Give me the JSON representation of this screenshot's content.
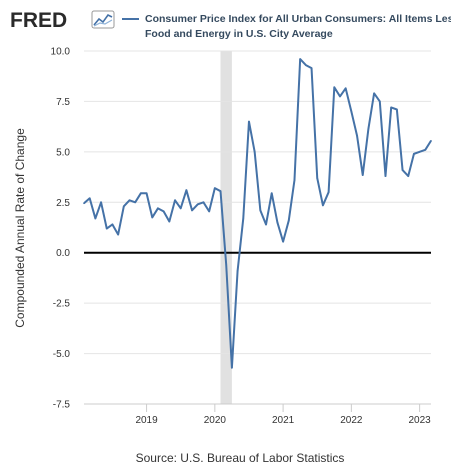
{
  "logo": {
    "text": "FRED"
  },
  "colors": {
    "series": "#4572A7",
    "plot_bg": "#ffffff",
    "page_bg": "#f0f0f0",
    "grid": "#e4e4e4",
    "recession": "#e1e1e1",
    "zero_line": "#000000"
  },
  "source": "Source: U.S. Bureau of Labor Statistics",
  "chart_data": {
    "type": "line",
    "legend": {
      "line1": "Consumer Price Index for All Urban Consumers: All Items Less",
      "line2": "Food and Energy in U.S. City Average",
      "placement": "top"
    },
    "ylabel": "Compounded Annual Rate of Change",
    "xlabel": "",
    "ylim": [
      -7.5,
      10.0
    ],
    "xlim": [
      "2018-02",
      "2023-03"
    ],
    "y_ticks": [
      "10.0",
      "7.5",
      "5.0",
      "2.5",
      "0.0",
      "-2.5",
      "-5.0",
      "-7.5"
    ],
    "x_ticks": [
      "2019",
      "2020",
      "2021",
      "2022",
      "2023"
    ],
    "grid": "horizontal",
    "recession": {
      "start": "2020-02",
      "end": "2020-04"
    },
    "reference_line": 0,
    "series": [
      {
        "name": "Consumer Price Index for All Urban Consumers: All Items Less Food and Energy in U.S. City Average",
        "x": [
          "2018-02",
          "2018-03",
          "2018-04",
          "2018-05",
          "2018-06",
          "2018-07",
          "2018-08",
          "2018-09",
          "2018-10",
          "2018-11",
          "2018-12",
          "2019-01",
          "2019-02",
          "2019-03",
          "2019-04",
          "2019-05",
          "2019-06",
          "2019-07",
          "2019-08",
          "2019-09",
          "2019-10",
          "2019-11",
          "2019-12",
          "2020-01",
          "2020-02",
          "2020-03",
          "2020-04",
          "2020-05",
          "2020-06",
          "2020-07",
          "2020-08",
          "2020-09",
          "2020-10",
          "2020-11",
          "2020-12",
          "2021-01",
          "2021-02",
          "2021-03",
          "2021-04",
          "2021-05",
          "2021-06",
          "2021-07",
          "2021-08",
          "2021-09",
          "2021-10",
          "2021-11",
          "2021-12",
          "2022-01",
          "2022-02",
          "2022-03",
          "2022-04",
          "2022-05",
          "2022-06",
          "2022-07",
          "2022-08",
          "2022-09",
          "2022-10",
          "2022-11",
          "2022-12",
          "2023-01",
          "2023-02",
          "2023-03"
        ],
        "values": [
          2.45,
          2.7,
          1.7,
          2.5,
          1.2,
          1.4,
          0.9,
          2.3,
          2.6,
          2.5,
          2.95,
          2.95,
          1.75,
          2.2,
          2.05,
          1.55,
          2.6,
          2.2,
          3.1,
          2.1,
          2.4,
          2.5,
          2.05,
          3.2,
          3.05,
          -0.6,
          -5.7,
          -0.9,
          1.7,
          6.5,
          5.0,
          2.1,
          1.4,
          2.95,
          1.5,
          0.55,
          1.6,
          3.6,
          9.6,
          9.3,
          9.15,
          3.7,
          2.35,
          3.0,
          8.2,
          7.75,
          8.15,
          7.0,
          5.8,
          3.85,
          6.15,
          7.9,
          7.5,
          3.8,
          7.2,
          7.1,
          4.1,
          3.8,
          4.9,
          5.0,
          5.1,
          5.55
        ]
      }
    ]
  }
}
